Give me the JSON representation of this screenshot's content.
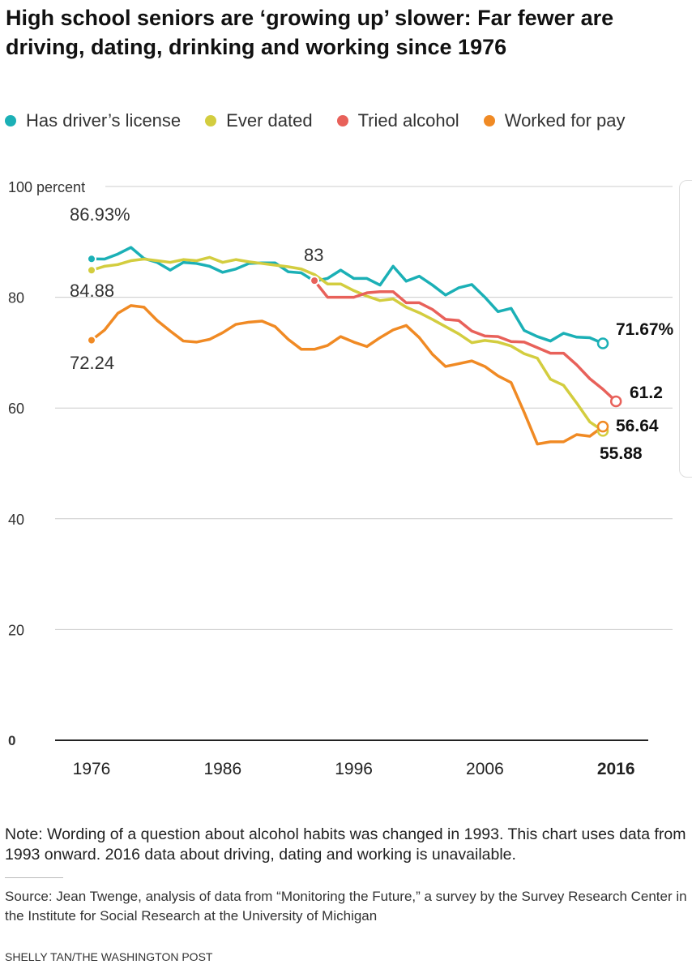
{
  "title": "High school seniors are ‘growing up’ slower: Far fewer are driving, dating, drinking and working since 1976",
  "chart_data": {
    "type": "line",
    "title": "High school seniors are ‘growing up’ slower: Far fewer are driving, dating, drinking and working since 1976",
    "xlabel": "",
    "ylabel": "percent",
    "ylim": [
      0,
      100
    ],
    "xlim": [
      1976,
      2016
    ],
    "y_ticks": [
      {
        "value": 100,
        "label": "100 percent"
      },
      {
        "value": 80,
        "label": "80"
      },
      {
        "value": 60,
        "label": "60"
      },
      {
        "value": 40,
        "label": "40"
      },
      {
        "value": 20,
        "label": "20"
      },
      {
        "value": 0,
        "label": "0"
      }
    ],
    "x_ticks": [
      {
        "value": 1976,
        "label": "1976"
      },
      {
        "value": 1986,
        "label": "1986"
      },
      {
        "value": 1996,
        "label": "1996"
      },
      {
        "value": 2006,
        "label": "2006"
      },
      {
        "value": 2016,
        "label": "2016"
      }
    ],
    "grid": true,
    "legend_position": "top",
    "series": [
      {
        "name": "Has driver’s license",
        "color": "#1bb0b6",
        "start_year": 1976,
        "values": [
          86.93,
          86.9,
          87.8,
          89.0,
          87.0,
          86.3,
          84.9,
          86.3,
          86.1,
          85.6,
          84.5,
          85.1,
          86.1,
          86.2,
          86.2,
          84.6,
          84.4,
          82.9,
          83.4,
          84.9,
          83.4,
          83.4,
          82.2,
          85.6,
          82.9,
          83.8,
          82.2,
          80.4,
          81.7,
          82.3,
          80.0,
          77.4,
          78.0,
          74.0,
          72.9,
          72.1,
          73.5,
          72.8,
          72.7,
          71.67
        ]
      },
      {
        "name": "Ever dated",
        "color": "#d3cd3f",
        "start_year": 1976,
        "values": [
          84.88,
          85.6,
          85.9,
          86.6,
          86.9,
          86.6,
          86.3,
          86.8,
          86.6,
          87.2,
          86.3,
          86.8,
          86.4,
          86.1,
          85.8,
          85.5,
          85.1,
          84.1,
          82.4,
          82.4,
          81.2,
          80.2,
          79.4,
          79.7,
          78.2,
          77.2,
          76.0,
          74.7,
          73.4,
          71.8,
          72.2,
          71.9,
          71.2,
          69.8,
          69.0,
          65.2,
          64.1,
          60.9,
          57.5,
          55.88
        ]
      },
      {
        "name": "Tried alcohol",
        "color": "#e8615a",
        "start_year": 1993,
        "values": [
          83,
          80.0,
          80.0,
          80.0,
          80.8,
          81.0,
          81.0,
          79.0,
          79.0,
          77.8,
          76.0,
          75.8,
          73.9,
          73.0,
          72.9,
          72.0,
          71.9,
          70.9,
          69.9,
          69.9,
          67.8,
          65.3,
          63.4,
          61.2
        ]
      },
      {
        "name": "Worked for pay",
        "color": "#f08a24",
        "start_year": 1976,
        "values": [
          72.24,
          74.1,
          77.1,
          78.5,
          78.2,
          75.8,
          73.9,
          72.1,
          71.9,
          72.4,
          73.6,
          75.1,
          75.5,
          75.7,
          74.7,
          72.4,
          70.6,
          70.6,
          71.3,
          72.9,
          71.9,
          71.1,
          72.7,
          74.1,
          74.9,
          72.7,
          69.7,
          67.5,
          68.0,
          68.5,
          67.5,
          65.8,
          64.6,
          59.2,
          53.5,
          53.9,
          53.9,
          55.2,
          54.9,
          56.64
        ]
      }
    ],
    "annotations": {
      "drive_start": "86.93%",
      "dated_start": "84.88",
      "work_start": "72.24",
      "alcohol_start": "83",
      "drive_end": "71.67%",
      "alcohol_end": "61.2",
      "work_end": "56.64",
      "dated_end": "55.88"
    }
  },
  "note": "Note: Wording of a question about alcohol habits was changed in 1993. This chart uses data from 1993 onward. 2016 data about driving, dating and working is unavailable.",
  "source": "Source: Jean Twenge, analysis of data from “Monitoring the Future,” a survey by the Survey Research Center in the Institute for Social Research at the University of Michigan",
  "credit": "SHELLY TAN/THE WASHINGTON POST"
}
